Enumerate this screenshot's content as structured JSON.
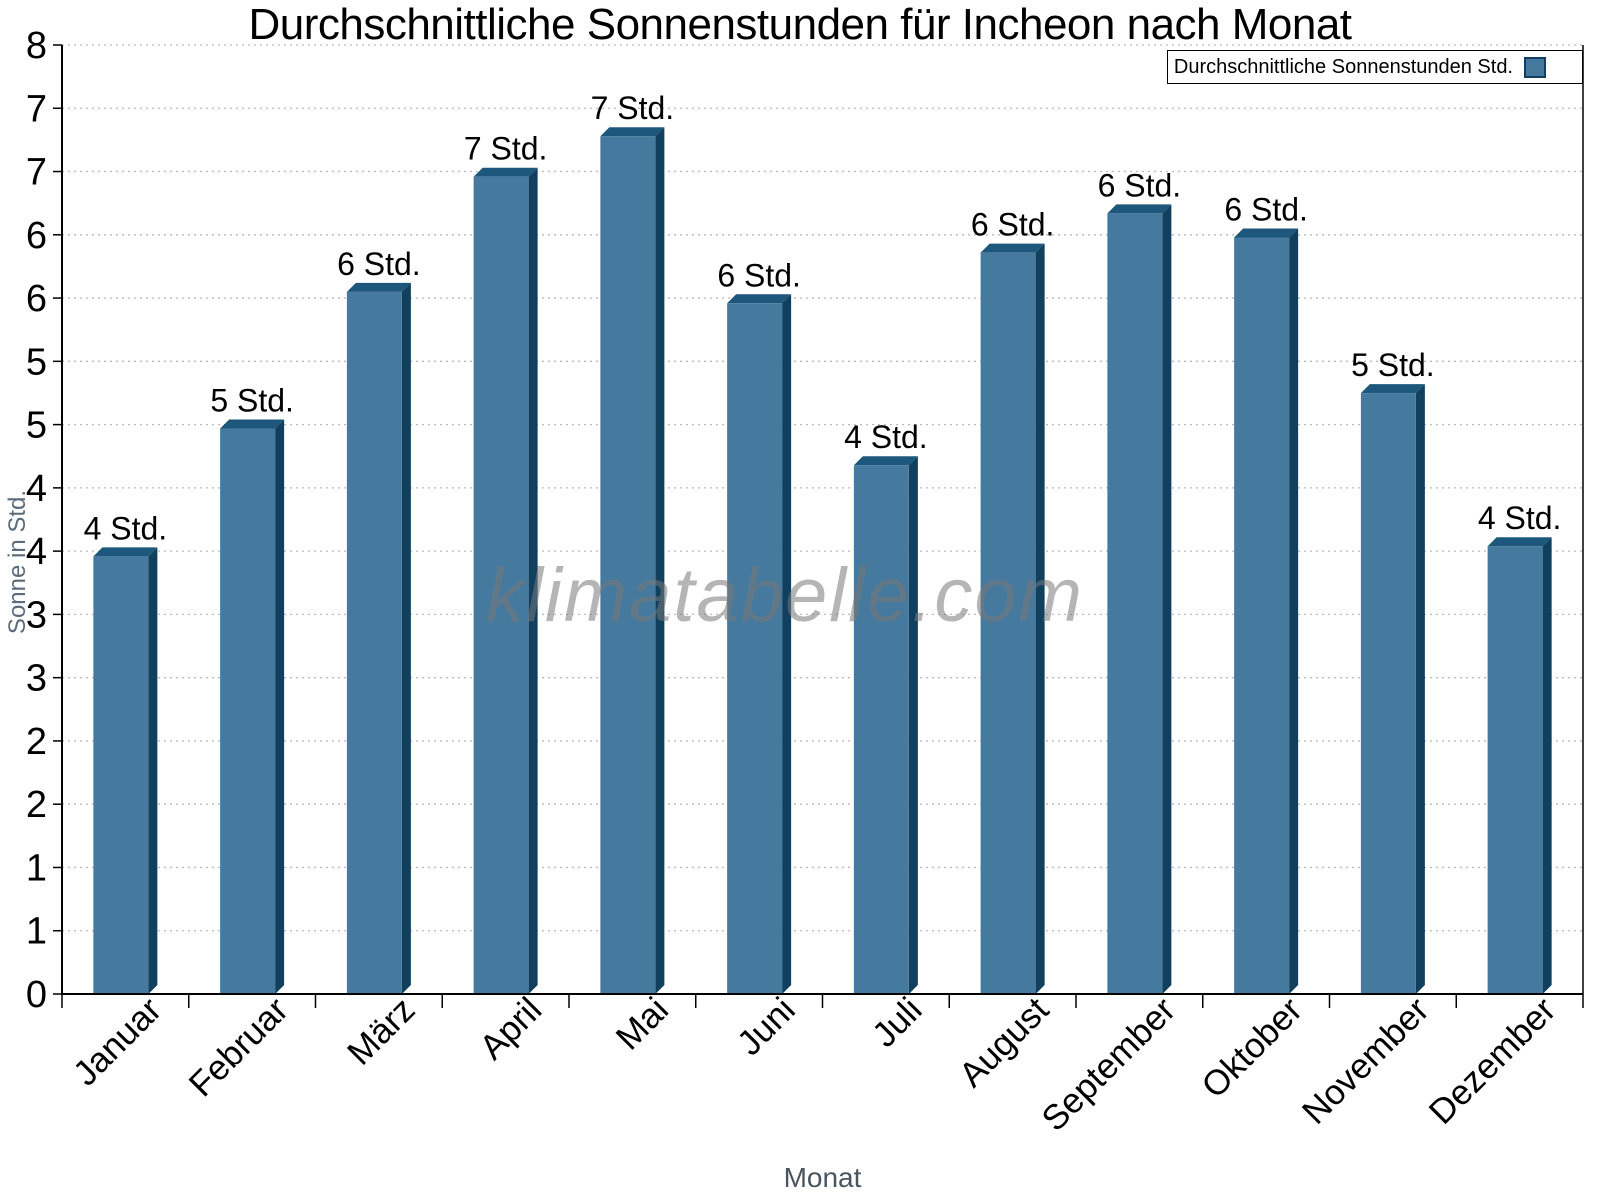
{
  "page": {
    "background": "#ffffff"
  },
  "chart_data": {
    "type": "bar",
    "title": "Durchschnittliche Sonnenstunden für Incheon nach Monat",
    "xlabel": "Monat",
    "ylabel": "Sonne in Std.",
    "watermark": "klimatabelle.com",
    "legend": {
      "label": "Durchschnittliche Sonnenstunden Std.",
      "position": "top-right"
    },
    "categories": [
      "Januar",
      "Februar",
      "März",
      "April",
      "Mai",
      "Juni",
      "Juli",
      "August",
      "September",
      "Oktober",
      "November",
      "Dezember"
    ],
    "series": [
      {
        "name": "Durchschnittliche Sonnenstunden Std.",
        "values": [
          3.53,
          4.54,
          5.62,
          6.53,
          6.85,
          5.53,
          4.25,
          5.93,
          6.24,
          6.05,
          4.82,
          3.61
        ],
        "bar_labels": [
          "4 Std.",
          "5 Std.",
          "6 Std.",
          "7 Std.",
          "7 Std.",
          "6 Std.",
          "4 Std.",
          "6 Std.",
          "6 Std.",
          "6 Std.",
          "5 Std.",
          "4 Std."
        ]
      }
    ],
    "ylim": [
      0,
      7.5
    ],
    "ytick_step": 0.5,
    "ytick_labels": [
      "0",
      "1",
      "1",
      "2",
      "2",
      "3",
      "3",
      "4",
      "4",
      "5",
      "5",
      "6",
      "6",
      "7",
      "7",
      "8"
    ],
    "grid": "horizontal-dotted",
    "colors": {
      "bar_front": "#45799E",
      "bar_top": "#1E577C",
      "bar_side": "#11405F",
      "grid": "#BBBBBB",
      "axis": "#000000",
      "tick_label": "#000000",
      "value_label": "#000000",
      "ylabel_color": "#5B6B7A",
      "xlabel_color": "#4B545E",
      "watermark_color": "rgba(120,120,120,0.55)",
      "legend_border": "#000000",
      "swatch_border": "#123F5F"
    }
  }
}
